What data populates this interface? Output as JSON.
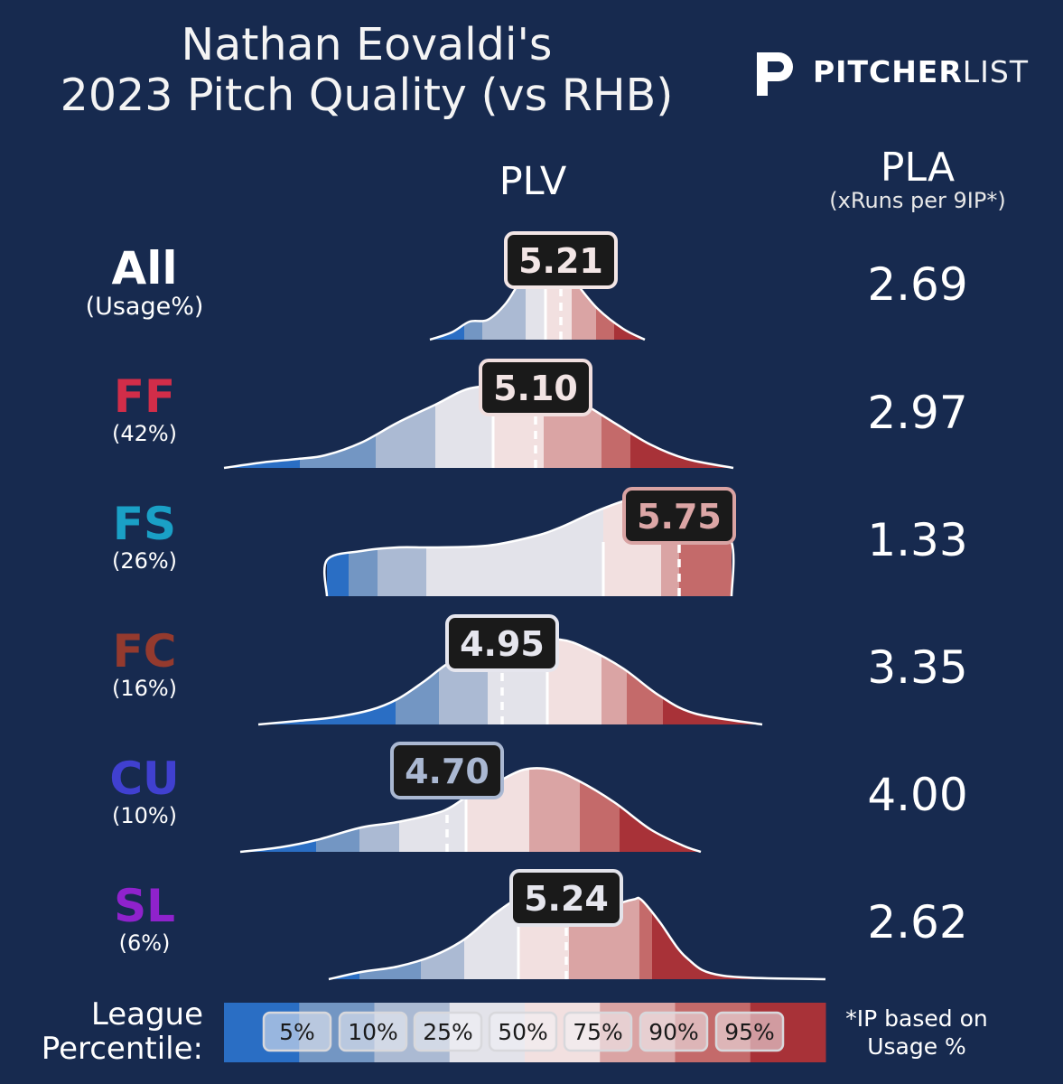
{
  "title": {
    "line1": "Nathan Eovaldi's",
    "line2": "2023 Pitch Quality (vs RHB)"
  },
  "logo": {
    "text_bold": "PITCHER",
    "text_light": "LIST",
    "icon": "pitcherlist-p-icon"
  },
  "headers": {
    "plv": "PLV",
    "pla": "PLA",
    "pla_sub": "(xRuns per 9IP*)"
  },
  "colors": {
    "background": "#172a4f",
    "FF": "#d22d49",
    "FS": "#1aa0c6",
    "FC": "#943a2e",
    "CU": "#4040d0",
    "SL": "#8f22cc",
    "All": "#ffffff",
    "palette": [
      "#2a6ec4",
      "#7396c3",
      "#abbad3",
      "#e3e3ea",
      "#f2e0e0",
      "#daa4a4",
      "#c46a6a",
      "#a83238"
    ]
  },
  "chart_data": {
    "type": "density-ridgeline",
    "x_axis": "PLV",
    "rows": [
      {
        "pitch": "All",
        "usage": "(Usage%)",
        "plv": "5.21",
        "pla": "2.69"
      },
      {
        "pitch": "FF",
        "usage": "(42%)",
        "plv": "5.10",
        "pla": "2.97"
      },
      {
        "pitch": "FS",
        "usage": "(26%)",
        "plv": "5.75",
        "pla": "1.33"
      },
      {
        "pitch": "FC",
        "usage": "(16%)",
        "plv": "4.95",
        "pla": "3.35"
      },
      {
        "pitch": "CU",
        "usage": "(10%)",
        "plv": "4.70",
        "pla": "4.00"
      },
      {
        "pitch": "SL",
        "usage": "(6%)",
        "plv": "5.24",
        "pla": "2.62"
      }
    ],
    "legend": {
      "label_line1": "League",
      "label_line2": "Percentile:",
      "percentiles": [
        "5%",
        "10%",
        "25%",
        "50%",
        "75%",
        "90%",
        "95%"
      ]
    }
  },
  "footnote": {
    "line1": "*IP based on",
    "line2": "Usage %"
  }
}
